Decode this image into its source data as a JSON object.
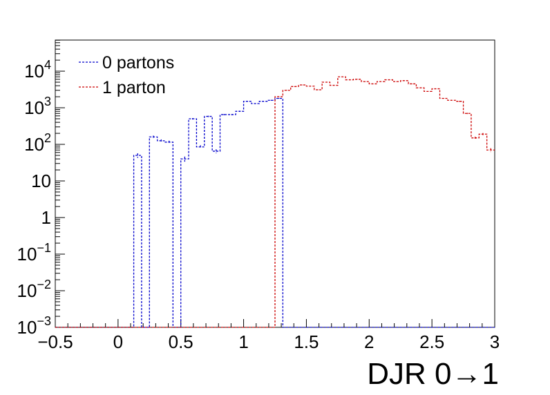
{
  "chart_data": {
    "type": "histogram",
    "xlabel": "DJR 0→1",
    "xlim": [
      -0.5,
      3.0
    ],
    "ylim_log10": [
      -3,
      4.85
    ],
    "yscale": "log",
    "bin_width": 0.0625,
    "x_ticks": [
      -0.5,
      0,
      0.5,
      1,
      1.5,
      2,
      2.5,
      3
    ],
    "x_tick_labels": [
      "−0.5",
      "0",
      "0.5",
      "1",
      "1.5",
      "2",
      "2.5",
      "3"
    ],
    "y_ticks": [
      {
        "exp": -3,
        "base": "10",
        "sup": "−3"
      },
      {
        "exp": -2,
        "base": "10",
        "sup": "−2"
      },
      {
        "exp": -1,
        "base": "10",
        "sup": "−1"
      },
      {
        "exp": 0,
        "base": "1",
        "sup": ""
      },
      {
        "exp": 1,
        "base": "10",
        "sup": ""
      },
      {
        "exp": 2,
        "base": "10",
        "sup": "2"
      },
      {
        "exp": 3,
        "base": "10",
        "sup": "3"
      },
      {
        "exp": 4,
        "base": "10",
        "sup": "4"
      }
    ],
    "legend": {
      "position": "top-left"
    },
    "series": [
      {
        "name": "0 partons",
        "color": "#0000cc",
        "bins": [
          [
            0.125,
            50
          ],
          [
            0.1875,
            0.001
          ],
          [
            0.25,
            160
          ],
          [
            0.3125,
            125
          ],
          [
            0.375,
            115
          ],
          [
            0.4375,
            0.001
          ],
          [
            0.5,
            40
          ],
          [
            0.5625,
            500
          ],
          [
            0.625,
            85
          ],
          [
            0.6875,
            580
          ],
          [
            0.75,
            65
          ],
          [
            0.8125,
            650
          ],
          [
            0.875,
            650
          ],
          [
            0.9375,
            800
          ],
          [
            1.0,
            1500
          ],
          [
            1.0625,
            1300
          ],
          [
            1.125,
            1500
          ],
          [
            1.1875,
            1600
          ],
          [
            1.25,
            1800
          ]
        ]
      },
      {
        "name": "1 parton",
        "color": "#cc0000",
        "bins": [
          [
            1.25,
            2000
          ],
          [
            1.3125,
            3000
          ],
          [
            1.375,
            3800
          ],
          [
            1.4375,
            4200
          ],
          [
            1.5,
            3900
          ],
          [
            1.5625,
            3100
          ],
          [
            1.625,
            5000
          ],
          [
            1.6875,
            4100
          ],
          [
            1.75,
            7000
          ],
          [
            1.8125,
            5800
          ],
          [
            1.875,
            6000
          ],
          [
            1.9375,
            5200
          ],
          [
            2.0,
            4500
          ],
          [
            2.0625,
            5200
          ],
          [
            2.125,
            5800
          ],
          [
            2.1875,
            5200
          ],
          [
            2.25,
            5500
          ],
          [
            2.3125,
            4500
          ],
          [
            2.375,
            3500
          ],
          [
            2.4375,
            2800
          ],
          [
            2.5,
            3300
          ],
          [
            2.5625,
            1800
          ],
          [
            2.625,
            1600
          ],
          [
            2.6875,
            1500
          ],
          [
            2.75,
            700
          ],
          [
            2.8125,
            150
          ],
          [
            2.875,
            190
          ],
          [
            2.9375,
            70
          ]
        ]
      }
    ]
  }
}
